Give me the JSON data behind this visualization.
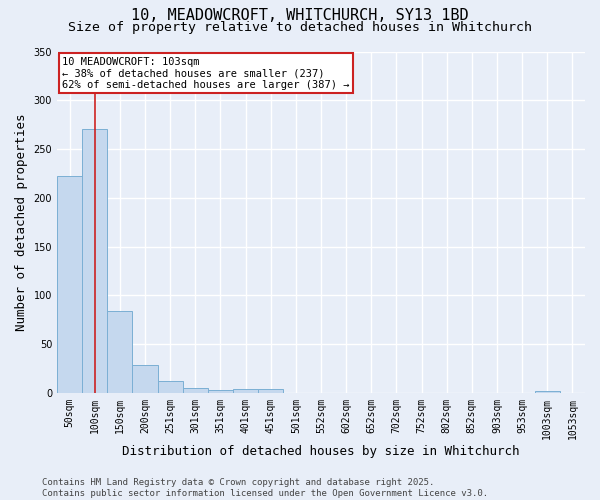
{
  "title_line1": "10, MEADOWCROFT, WHITCHURCH, SY13 1BD",
  "title_line2": "Size of property relative to detached houses in Whitchurch",
  "xlabel": "Distribution of detached houses by size in Whitchurch",
  "ylabel": "Number of detached properties",
  "categories": [
    "50sqm",
    "100sqm",
    "150sqm",
    "200sqm",
    "251sqm",
    "301sqm",
    "351sqm",
    "401sqm",
    "451sqm",
    "501sqm",
    "552sqm",
    "602sqm",
    "652sqm",
    "702sqm",
    "752sqm",
    "802sqm",
    "852sqm",
    "903sqm",
    "953sqm",
    "1003sqm",
    "1053sqm"
  ],
  "values": [
    222,
    271,
    84,
    29,
    12,
    5,
    3,
    4,
    4,
    0,
    0,
    0,
    0,
    0,
    0,
    0,
    0,
    0,
    0,
    2,
    0
  ],
  "bar_color": "#c5d8ee",
  "bar_edge_color": "#7bafd4",
  "vline_x_index": 1,
  "vline_color": "#cc2222",
  "annotation_text": "10 MEADOWCROFT: 103sqm\n← 38% of detached houses are smaller (237)\n62% of semi-detached houses are larger (387) →",
  "annotation_box_color": "#ffffff",
  "annotation_box_edge_color": "#cc2222",
  "ylim": [
    0,
    350
  ],
  "yticks": [
    0,
    50,
    100,
    150,
    200,
    250,
    300,
    350
  ],
  "footnote": "Contains HM Land Registry data © Crown copyright and database right 2025.\nContains public sector information licensed under the Open Government Licence v3.0.",
  "background_color": "#e8eef8",
  "grid_color": "#ffffff",
  "title_fontsize": 11,
  "subtitle_fontsize": 9.5,
  "axis_label_fontsize": 9,
  "tick_fontsize": 7,
  "annotation_fontsize": 7.5,
  "footnote_fontsize": 6.5
}
